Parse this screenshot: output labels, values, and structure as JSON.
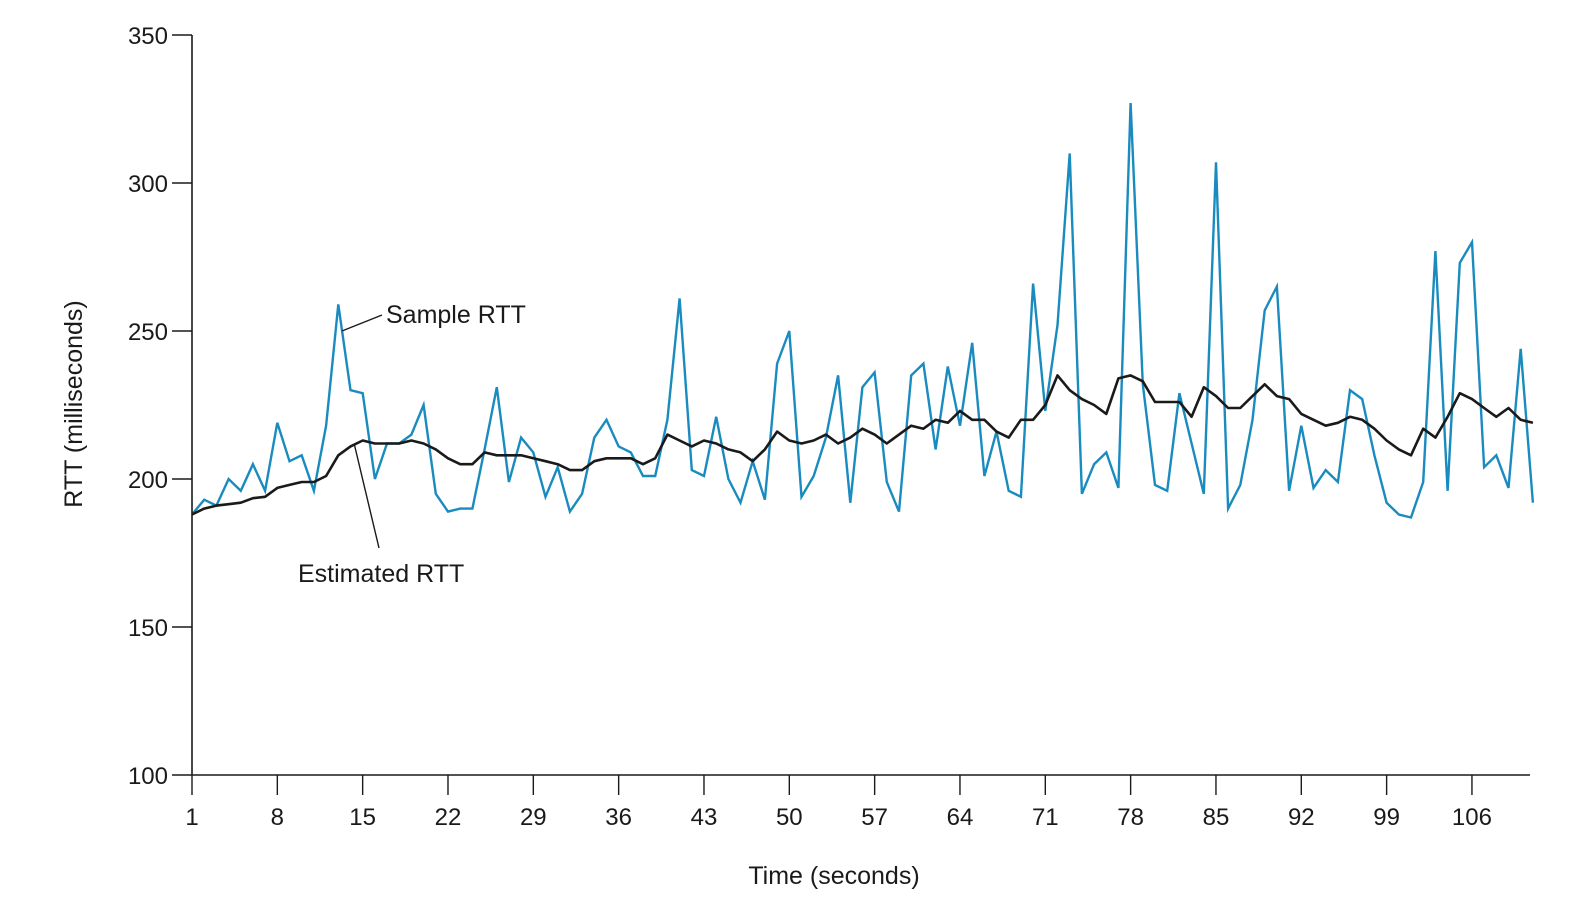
{
  "chart_data": {
    "type": "line",
    "title": "",
    "xlabel": "Time (seconds)",
    "ylabel": "RTT (milliseconds)",
    "xlim": [
      1,
      112
    ],
    "ylim": [
      100,
      350
    ],
    "xticks": [
      1,
      8,
      15,
      22,
      29,
      36,
      43,
      50,
      57,
      64,
      71,
      78,
      85,
      92,
      99,
      106
    ],
    "yticks": [
      100,
      150,
      200,
      250,
      300,
      350
    ],
    "grid": false,
    "legend": "none",
    "series": [
      {
        "name": "Sample RTT",
        "color": "#1a8bbf",
        "x": [
          1,
          2,
          3,
          4,
          5,
          6,
          7,
          8,
          9,
          10,
          11,
          12,
          13,
          14,
          15,
          16,
          17,
          18,
          19,
          20,
          21,
          22,
          23,
          24,
          25,
          26,
          27,
          28,
          29,
          30,
          31,
          32,
          33,
          34,
          35,
          36,
          37,
          38,
          39,
          40,
          41,
          42,
          43,
          44,
          45,
          46,
          47,
          48,
          49,
          50,
          51,
          52,
          53,
          54,
          55,
          56,
          57,
          58,
          59,
          60,
          61,
          62,
          63,
          64,
          65,
          66,
          67,
          68,
          69,
          70,
          71,
          72,
          73,
          74,
          75,
          76,
          77,
          78,
          79,
          80,
          81,
          82,
          83,
          84,
          85,
          86,
          87,
          88,
          89,
          90,
          91,
          92,
          93,
          94,
          95,
          96,
          97,
          98,
          99,
          100,
          101,
          102,
          103,
          104,
          105,
          106,
          107,
          108,
          109,
          110,
          111
        ],
        "values": [
          188,
          193,
          191,
          200,
          196,
          205,
          196,
          219,
          206,
          208,
          196,
          218,
          259,
          230,
          229,
          200,
          212,
          212,
          215,
          225,
          195,
          189,
          190,
          190,
          210,
          231,
          199,
          214,
          209,
          194,
          204,
          189,
          195,
          214,
          220,
          211,
          209,
          201,
          201,
          220,
          261,
          203,
          201,
          221,
          200,
          192,
          206,
          193,
          239,
          250,
          194,
          201,
          214,
          235,
          192,
          231,
          236,
          199,
          189,
          235,
          239,
          210,
          238,
          218,
          246,
          201,
          216,
          196,
          194,
          266,
          223,
          252,
          310,
          195,
          205,
          209,
          197,
          327,
          232,
          198,
          196,
          229,
          212,
          195,
          307,
          190,
          198,
          220,
          257,
          265,
          196,
          218,
          197,
          203,
          199,
          230,
          227,
          208,
          192,
          188,
          187,
          199,
          277,
          196,
          273,
          280,
          204,
          208,
          197,
          244,
          192
        ]
      },
      {
        "name": "Estimated RTT",
        "color": "#1a1a1a",
        "x": [
          1,
          2,
          3,
          4,
          5,
          6,
          7,
          8,
          9,
          10,
          11,
          12,
          13,
          14,
          15,
          16,
          17,
          18,
          19,
          20,
          21,
          22,
          23,
          24,
          25,
          26,
          27,
          28,
          29,
          30,
          31,
          32,
          33,
          34,
          35,
          36,
          37,
          38,
          39,
          40,
          41,
          42,
          43,
          44,
          45,
          46,
          47,
          48,
          49,
          50,
          51,
          52,
          53,
          54,
          55,
          56,
          57,
          58,
          59,
          60,
          61,
          62,
          63,
          64,
          65,
          66,
          67,
          68,
          69,
          70,
          71,
          72,
          73,
          74,
          75,
          76,
          77,
          78,
          79,
          80,
          81,
          82,
          83,
          84,
          85,
          86,
          87,
          88,
          89,
          90,
          91,
          92,
          93,
          94,
          95,
          96,
          97,
          98,
          99,
          100,
          101,
          102,
          103,
          104,
          105,
          106,
          107,
          108,
          109,
          110,
          111
        ],
        "values": [
          188,
          190,
          191,
          191.5,
          192,
          193.5,
          194,
          197,
          198,
          199,
          199,
          201,
          208,
          211,
          213,
          212,
          212,
          212,
          213,
          212,
          210,
          207,
          205,
          205,
          209,
          208,
          208,
          208,
          207,
          206,
          205,
          203,
          203,
          206,
          207,
          207,
          207,
          205,
          207,
          215,
          213,
          211,
          213,
          212,
          210,
          209,
          206,
          210,
          216,
          213,
          212,
          213,
          215,
          212,
          214,
          217,
          215,
          212,
          215,
          218,
          217,
          220,
          219,
          223,
          220,
          220,
          216,
          214,
          220,
          220,
          225,
          235,
          230,
          227,
          225,
          222,
          234,
          235,
          233,
          226,
          226,
          226,
          221,
          231,
          228,
          224,
          224,
          228,
          232,
          228,
          227,
          222,
          220,
          218,
          219,
          221,
          220,
          217,
          213,
          210,
          208,
          217,
          214,
          221,
          229,
          227,
          224,
          221,
          224,
          220,
          219
        ]
      }
    ],
    "annotations": [
      {
        "text": "Sample RTT",
        "target_series": "Sample RTT",
        "target_x": 13.3,
        "target_y": 250
      },
      {
        "text": "Estimated RTT",
        "target_series": "Estimated RTT",
        "target_x": 14.3,
        "target_y": 212
      }
    ]
  }
}
